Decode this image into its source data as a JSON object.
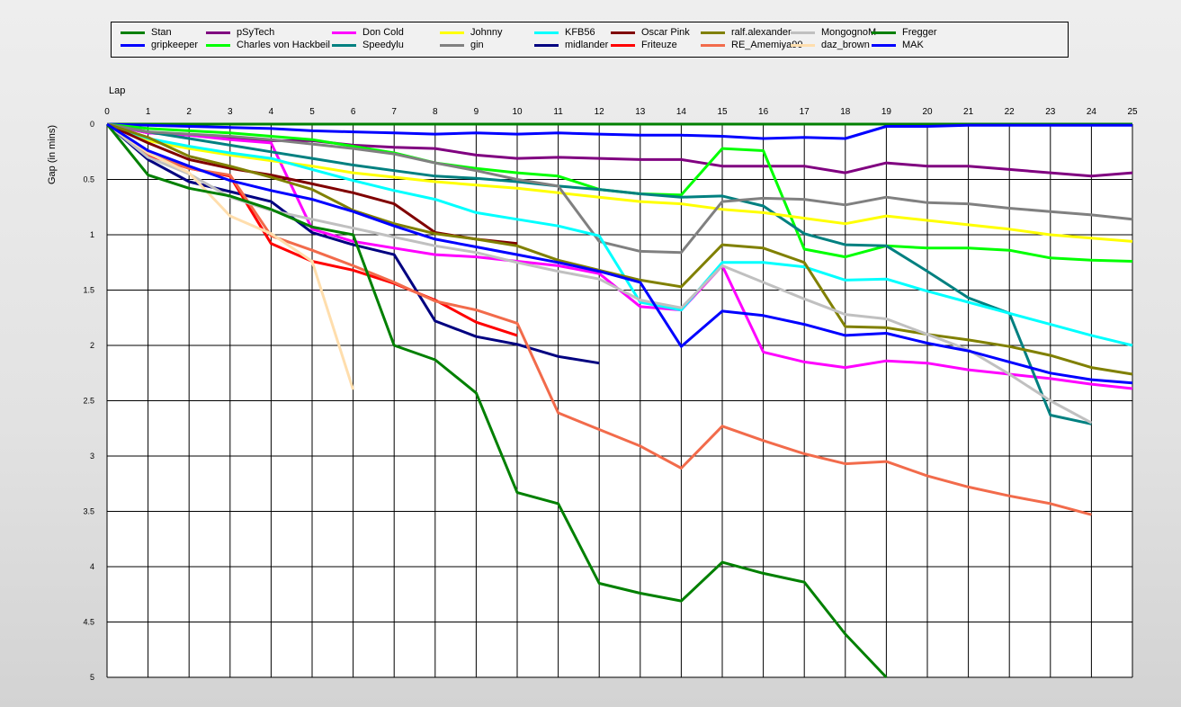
{
  "chart_data": {
    "type": "line",
    "xlabel": "Lap",
    "ylabel": "Gap (in mins)",
    "xlim": [
      0,
      25
    ],
    "ylim": [
      0,
      5
    ],
    "y_inverted": true,
    "grid": true,
    "legend_position": "top",
    "x_ticks": [
      "0",
      "1",
      "2",
      "3",
      "4",
      "5",
      "6",
      "7",
      "8",
      "9",
      "10",
      "11",
      "12",
      "13",
      "14",
      "15",
      "16",
      "17",
      "18",
      "19",
      "20",
      "21",
      "22",
      "23",
      "24",
      "25"
    ],
    "y_ticks": [
      "0",
      "0.5",
      "1",
      "1.5",
      "2",
      "2.5",
      "3",
      "3.5",
      "4",
      "4.5",
      "5"
    ],
    "series": [
      {
        "name": "Stan",
        "color": "#008000",
        "values": [
          0,
          0,
          0,
          0,
          0,
          0,
          0,
          0,
          0,
          0,
          0,
          0,
          0,
          0,
          0,
          0,
          0,
          0,
          0,
          0,
          0,
          0,
          0,
          0,
          0,
          0
        ]
      },
      {
        "name": "gripkeeper",
        "color": "#0000ff",
        "values": [
          0,
          0.01,
          0.02,
          0.03,
          0.04,
          0.06,
          0.07,
          0.08,
          0.09,
          0.08,
          0.09,
          0.08,
          0.09,
          0.1,
          0.1,
          0.11,
          0.13,
          0.12,
          0.13,
          0.02,
          0.02,
          0.01,
          0.01,
          0.01,
          0.01,
          0.01
        ]
      },
      {
        "name": "pSyTech",
        "color": "#800080",
        "values": [
          0,
          0.08,
          0.1,
          0.12,
          0.15,
          0.15,
          0.19,
          0.21,
          0.22,
          0.28,
          0.31,
          0.3,
          0.31,
          0.32,
          0.32,
          0.38,
          0.38,
          0.38,
          0.44,
          0.35,
          0.38,
          0.38,
          0.41,
          0.44,
          0.47,
          0.44
        ]
      },
      {
        "name": "Charles von Hackbeil",
        "color": "#00ff00",
        "values": [
          0,
          0.04,
          0.06,
          0.08,
          0.11,
          0.14,
          0.2,
          0.26,
          0.35,
          0.4,
          0.44,
          0.47,
          0.59,
          0.63,
          0.64,
          0.22,
          0.24,
          1.13,
          1.2,
          1.1,
          1.12,
          1.12,
          1.14,
          1.21,
          1.23,
          1.24
        ]
      },
      {
        "name": "Don Cold",
        "color": "#ff00ff",
        "values": [
          0,
          0.08,
          0.1,
          0.14,
          0.17,
          0.95,
          1.06,
          1.12,
          1.18,
          1.2,
          1.24,
          1.28,
          1.35,
          1.65,
          1.68,
          1.28,
          2.06,
          2.15,
          2.2,
          2.14,
          2.16,
          2.22,
          2.26,
          2.3,
          2.35,
          2.39
        ]
      },
      {
        "name": "Speedylu",
        "color": "#008080",
        "values": [
          0,
          0.07,
          0.13,
          0.19,
          0.25,
          0.31,
          0.37,
          0.42,
          0.47,
          0.49,
          0.52,
          0.56,
          0.59,
          0.63,
          0.66,
          0.65,
          0.74,
          0.99,
          1.09,
          1.1,
          1.33,
          1.57,
          1.71,
          2.63,
          2.71,
          null
        ]
      },
      {
        "name": "Johnny",
        "color": "#ffff00",
        "values": [
          0,
          0.15,
          0.22,
          0.28,
          0.33,
          0.38,
          0.44,
          0.48,
          0.52,
          0.55,
          0.58,
          0.62,
          0.66,
          0.7,
          0.72,
          0.77,
          0.8,
          0.85,
          0.9,
          0.83,
          0.87,
          0.91,
          0.95,
          1.0,
          1.03,
          1.06
        ]
      },
      {
        "name": "gin",
        "color": "#808080",
        "values": [
          0,
          0.07,
          0.09,
          0.11,
          0.14,
          0.18,
          0.22,
          0.27,
          0.35,
          0.42,
          0.5,
          0.56,
          1.06,
          1.15,
          1.16,
          0.7,
          0.67,
          0.68,
          0.73,
          0.66,
          0.71,
          0.72,
          0.76,
          0.79,
          0.82,
          0.86
        ]
      },
      {
        "name": "KFB56",
        "color": "#00ffff",
        "values": [
          0,
          0.13,
          0.2,
          0.26,
          0.31,
          0.41,
          0.51,
          0.6,
          0.68,
          0.8,
          0.86,
          0.92,
          1.01,
          1.61,
          1.68,
          1.25,
          1.25,
          1.29,
          1.41,
          1.4,
          1.51,
          1.61,
          1.71,
          1.81,
          1.91,
          2.0
        ]
      },
      {
        "name": "midlander",
        "color": "#000080",
        "values": [
          0,
          0.32,
          0.52,
          0.61,
          0.7,
          0.98,
          1.09,
          1.18,
          1.78,
          1.92,
          1.99,
          2.1,
          2.16,
          null,
          null,
          null,
          null,
          null,
          null,
          null,
          null,
          null,
          null,
          null,
          null,
          null
        ]
      },
      {
        "name": "Oscar Pink",
        "color": "#800000",
        "values": [
          0,
          0.17,
          0.32,
          0.4,
          0.46,
          0.54,
          0.62,
          0.72,
          0.98,
          1.04,
          1.08,
          null,
          null,
          null,
          null,
          null,
          null,
          null,
          null,
          null,
          null,
          null,
          null,
          null,
          null,
          null
        ]
      },
      {
        "name": "Friteuze",
        "color": "#ff0000",
        "values": [
          0,
          0.28,
          0.4,
          0.47,
          1.08,
          1.24,
          1.32,
          1.44,
          1.59,
          1.79,
          1.91,
          null,
          null,
          null,
          null,
          null,
          null,
          null,
          null,
          null,
          null,
          null,
          null,
          null,
          null,
          null
        ]
      },
      {
        "name": "ralf.alexander",
        "color": "#808000",
        "values": [
          0,
          0.12,
          0.29,
          0.38,
          0.48,
          0.59,
          0.78,
          0.9,
          0.99,
          1.04,
          1.1,
          1.23,
          1.32,
          1.41,
          1.47,
          1.09,
          1.12,
          1.25,
          1.83,
          1.84,
          1.9,
          1.95,
          2.01,
          2.09,
          2.2,
          2.26
        ]
      },
      {
        "name": "RE_Amemiya90",
        "color": "#f26b4b",
        "values": [
          0,
          0.27,
          0.4,
          0.46,
          1.01,
          1.14,
          1.28,
          1.43,
          1.6,
          1.68,
          1.8,
          2.61,
          2.76,
          2.91,
          3.11,
          2.73,
          2.86,
          2.98,
          3.07,
          3.05,
          3.18,
          3.28,
          3.36,
          3.43,
          3.53,
          null
        ]
      },
      {
        "name": "MongognoM",
        "color": "#c0c0c0",
        "values": [
          0,
          0.3,
          0.45,
          0.66,
          0.78,
          0.86,
          0.94,
          1.02,
          1.1,
          1.16,
          1.25,
          1.33,
          1.4,
          1.59,
          1.66,
          1.28,
          1.43,
          1.58,
          1.72,
          1.76,
          1.9,
          2.04,
          2.26,
          2.5,
          2.7,
          null
        ]
      },
      {
        "name": "daz_brown",
        "color": "#ffdead",
        "values": [
          0,
          0.26,
          0.44,
          0.83,
          0.99,
          1.24,
          2.4,
          null,
          null,
          null,
          null,
          null,
          null,
          null,
          null,
          null,
          null,
          null,
          null,
          null,
          null,
          null,
          null,
          null,
          null,
          null
        ]
      },
      {
        "name": "Fregger",
        "color": "#008000",
        "values": [
          0,
          0.46,
          0.58,
          0.65,
          0.77,
          0.93,
          1.0,
          2.0,
          2.13,
          2.43,
          3.33,
          3.43,
          4.15,
          4.24,
          4.31,
          3.96,
          4.06,
          4.14,
          4.61,
          5.0,
          null,
          null,
          null,
          null,
          null,
          null
        ]
      },
      {
        "name": "MAK",
        "color": "#0000ff",
        "values": [
          0,
          0.24,
          0.38,
          0.51,
          0.6,
          0.68,
          0.79,
          0.92,
          1.04,
          1.11,
          1.18,
          1.25,
          1.33,
          1.43,
          2.01,
          1.69,
          1.73,
          1.81,
          1.91,
          1.89,
          1.98,
          2.05,
          2.15,
          2.25,
          2.31,
          2.34
        ]
      }
    ]
  }
}
